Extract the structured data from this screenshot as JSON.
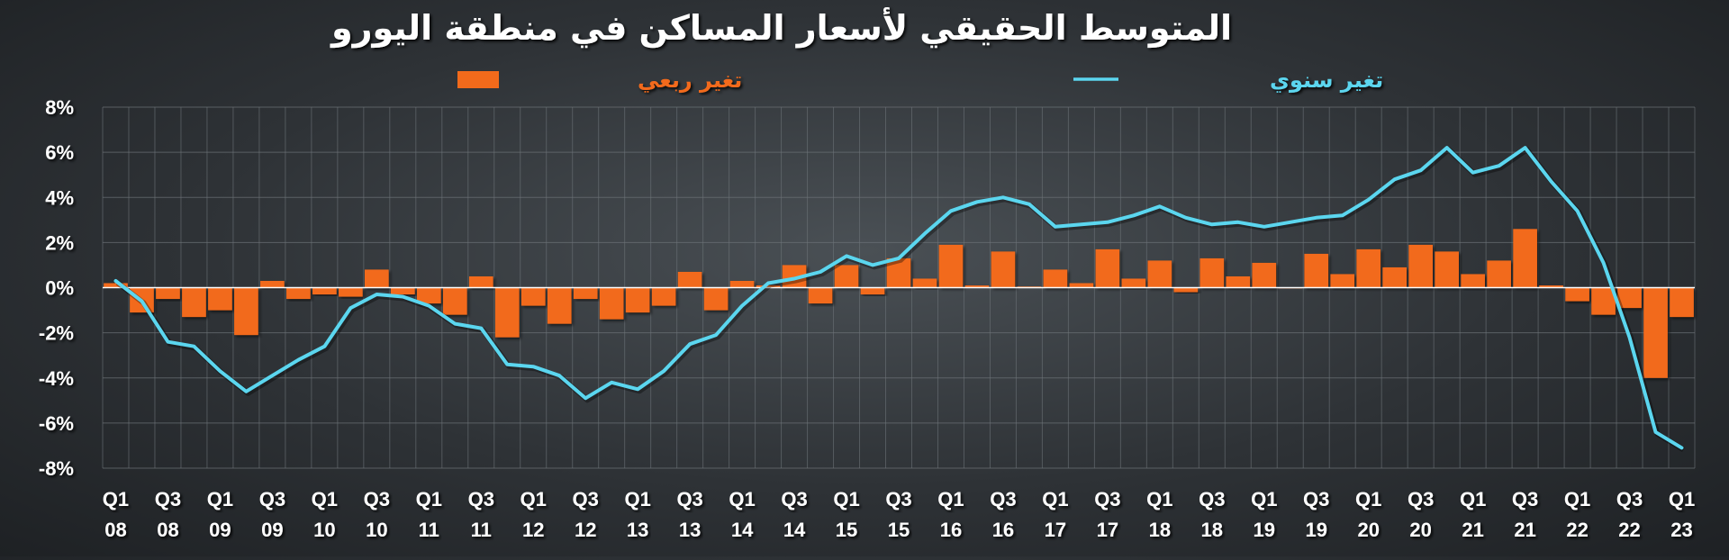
{
  "chart_data": {
    "type": "bar+line",
    "title": "المتوسط الحقيقي لأسعار المساكن في منطقة اليورو",
    "legend": [
      {
        "name": "تغير ربعي",
        "type": "bar",
        "color": "#f26a1b"
      },
      {
        "name": "تغير سنوي",
        "type": "line",
        "color": "#5bd6ef"
      }
    ],
    "y_ticks": [
      "8%",
      "6%",
      "4%",
      "2%",
      "0%",
      "-2%",
      "-4%",
      "-6%",
      "-8%"
    ],
    "ylim": [
      -8,
      8
    ],
    "x_tick_labels": [
      [
        "Q1",
        "08"
      ],
      [
        "Q3",
        "08"
      ],
      [
        "Q1",
        "09"
      ],
      [
        "Q3",
        "09"
      ],
      [
        "Q1",
        "10"
      ],
      [
        "Q3",
        "10"
      ],
      [
        "Q1",
        "11"
      ],
      [
        "Q3",
        "11"
      ],
      [
        "Q1",
        "12"
      ],
      [
        "Q3",
        "12"
      ],
      [
        "Q1",
        "13"
      ],
      [
        "Q3",
        "13"
      ],
      [
        "Q1",
        "14"
      ],
      [
        "Q3",
        "14"
      ],
      [
        "Q1",
        "15"
      ],
      [
        "Q3",
        "15"
      ],
      [
        "Q1",
        "16"
      ],
      [
        "Q3",
        "16"
      ],
      [
        "Q1",
        "17"
      ],
      [
        "Q3",
        "17"
      ],
      [
        "Q1",
        "18"
      ],
      [
        "Q3",
        "18"
      ],
      [
        "Q1",
        "19"
      ],
      [
        "Q3",
        "19"
      ],
      [
        "Q1",
        "20"
      ],
      [
        "Q3",
        "20"
      ],
      [
        "Q1",
        "21"
      ],
      [
        "Q3",
        "21"
      ],
      [
        "Q1",
        "22"
      ],
      [
        "Q3",
        "22"
      ],
      [
        "Q1",
        "23"
      ]
    ],
    "quarters": [
      "Q1 08",
      "Q2 08",
      "Q3 08",
      "Q4 08",
      "Q1 09",
      "Q2 09",
      "Q3 09",
      "Q4 09",
      "Q1 10",
      "Q2 10",
      "Q3 10",
      "Q4 10",
      "Q1 11",
      "Q2 11",
      "Q3 11",
      "Q4 11",
      "Q1 12",
      "Q2 12",
      "Q3 12",
      "Q4 12",
      "Q1 13",
      "Q2 13",
      "Q3 13",
      "Q4 13",
      "Q1 14",
      "Q2 14",
      "Q3 14",
      "Q4 14",
      "Q1 15",
      "Q2 15",
      "Q3 15",
      "Q4 15",
      "Q1 16",
      "Q2 16",
      "Q3 16",
      "Q4 16",
      "Q1 17",
      "Q2 17",
      "Q3 17",
      "Q4 17",
      "Q1 18",
      "Q2 18",
      "Q3 18",
      "Q4 18",
      "Q1 19",
      "Q2 19",
      "Q3 19",
      "Q4 19",
      "Q1 20",
      "Q2 20",
      "Q3 20",
      "Q4 20",
      "Q1 21",
      "Q2 21",
      "Q3 21",
      "Q4 21",
      "Q1 22",
      "Q2 22",
      "Q3 22",
      "Q4 22",
      "Q1 23"
    ],
    "quarterly_change": [
      0.2,
      -1.1,
      -0.5,
      -1.3,
      -1.0,
      -2.1,
      0.3,
      -0.5,
      -0.3,
      -0.4,
      0.8,
      -0.3,
      -0.7,
      -1.2,
      0.5,
      -2.2,
      -0.8,
      -1.6,
      -0.5,
      -1.4,
      -1.1,
      -0.8,
      0.7,
      -1.0,
      0.3,
      0.1,
      1.0,
      -0.7,
      1.0,
      -0.3,
      1.3,
      0.4,
      1.9,
      0.1,
      1.6,
      0.05,
      0.8,
      0.2,
      1.7,
      0.4,
      1.2,
      -0.2,
      1.3,
      0.5,
      1.1,
      0.0,
      1.5,
      0.6,
      1.7,
      0.9,
      1.9,
      1.6,
      0.6,
      1.2,
      2.6,
      0.1,
      -0.6,
      -1.2,
      -0.9,
      -4.0,
      -1.3
    ],
    "annual_change": [
      0.3,
      -0.6,
      -2.4,
      -2.6,
      -3.7,
      -4.6,
      -3.9,
      -3.2,
      -2.6,
      -0.9,
      -0.3,
      -0.4,
      -0.8,
      -1.6,
      -1.8,
      -3.4,
      -3.5,
      -3.9,
      -4.9,
      -4.2,
      -4.5,
      -3.7,
      -2.5,
      -2.1,
      -0.8,
      0.2,
      0.4,
      0.7,
      1.4,
      1.0,
      1.3,
      2.4,
      3.4,
      3.8,
      4.0,
      3.7,
      2.7,
      2.8,
      2.9,
      3.2,
      3.6,
      3.1,
      2.8,
      2.9,
      2.7,
      2.9,
      3.1,
      3.2,
      3.9,
      4.8,
      5.2,
      6.2,
      5.1,
      5.4,
      6.2,
      4.7,
      3.4,
      1.1,
      -2.2,
      -6.4,
      -7.1
    ]
  }
}
